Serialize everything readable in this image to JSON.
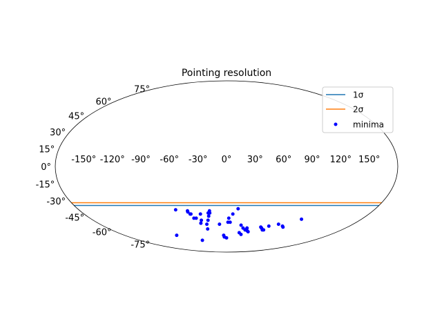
{
  "chart_data": {
    "type": "scatter",
    "projection": "mollweide",
    "title": "Pointing resolution",
    "grid": false,
    "legend_position": "upper-right",
    "lon_tick_labels": [
      "-150°",
      "-120°",
      "-90°",
      "-60°",
      "-30°",
      "0°",
      "30°",
      "60°",
      "90°",
      "120°",
      "150°"
    ],
    "lat_tick_labels": [
      "-75°",
      "-60°",
      "-45°",
      "-30°",
      "-15°",
      "0°",
      "15°",
      "30°",
      "45°",
      "60°",
      "75°"
    ],
    "series": [
      {
        "name": "1σ",
        "kind": "line",
        "color": "#1f77b4",
        "description": "constant-latitude contour",
        "lat": -34
      },
      {
        "name": "2σ",
        "kind": "line",
        "color": "#ff7f0e",
        "description": "constant-latitude contour",
        "lat": -31.5
      },
      {
        "name": "minima",
        "kind": "scatter",
        "color": "#0000ff",
        "points": [
          {
            "lon": -62,
            "lat": -38
          },
          {
            "lon": -48,
            "lat": -40
          },
          {
            "lon": -48,
            "lat": -39
          },
          {
            "lon": -46,
            "lat": -42
          },
          {
            "lon": -45,
            "lat": -42
          },
          {
            "lon": -43,
            "lat": -46
          },
          {
            "lon": -40,
            "lat": -46
          },
          {
            "lon": -36,
            "lat": -51
          },
          {
            "lon": -34,
            "lat": -48
          },
          {
            "lon": -33,
            "lat": -42
          },
          {
            "lon": -29,
            "lat": -57
          },
          {
            "lon": -28,
            "lat": -52
          },
          {
            "lon": -25,
            "lat": -48
          },
          {
            "lon": -23,
            "lat": -44
          },
          {
            "lon": -23,
            "lat": -41
          },
          {
            "lon": -21,
            "lat": -41
          },
          {
            "lon": -21,
            "lat": -39
          },
          {
            "lon": -10,
            "lat": -52
          },
          {
            "lon": -5,
            "lat": -64
          },
          {
            "lon": -4,
            "lat": -66
          },
          {
            "lon": 0,
            "lat": -67
          },
          {
            "lon": 2,
            "lat": -50
          },
          {
            "lon": 3,
            "lat": -46
          },
          {
            "lon": 5,
            "lat": -50
          },
          {
            "lon": 8,
            "lat": -42
          },
          {
            "lon": 14,
            "lat": -37
          },
          {
            "lon": 21,
            "lat": -53
          },
          {
            "lon": 21,
            "lat": -61
          },
          {
            "lon": 25,
            "lat": -56
          },
          {
            "lon": 25,
            "lat": -63
          },
          {
            "lon": 29,
            "lat": -58
          },
          {
            "lon": 31,
            "lat": -56
          },
          {
            "lon": 33,
            "lat": -59
          },
          {
            "lon": 35,
            "lat": -60
          },
          {
            "lon": 51,
            "lat": -55
          },
          {
            "lon": 53,
            "lat": -56
          },
          {
            "lon": 56,
            "lat": -58
          },
          {
            "lon": 58,
            "lat": -58
          },
          {
            "lon": 62,
            "lat": -54
          },
          {
            "lon": 74,
            "lat": -52
          },
          {
            "lon": 82,
            "lat": -54
          },
          {
            "lon": 84,
            "lat": -55
          },
          {
            "lon": 100,
            "lat": -47
          },
          {
            "lon": -88,
            "lat": -64
          },
          {
            "lon": -50,
            "lat": -70
          }
        ]
      }
    ]
  }
}
